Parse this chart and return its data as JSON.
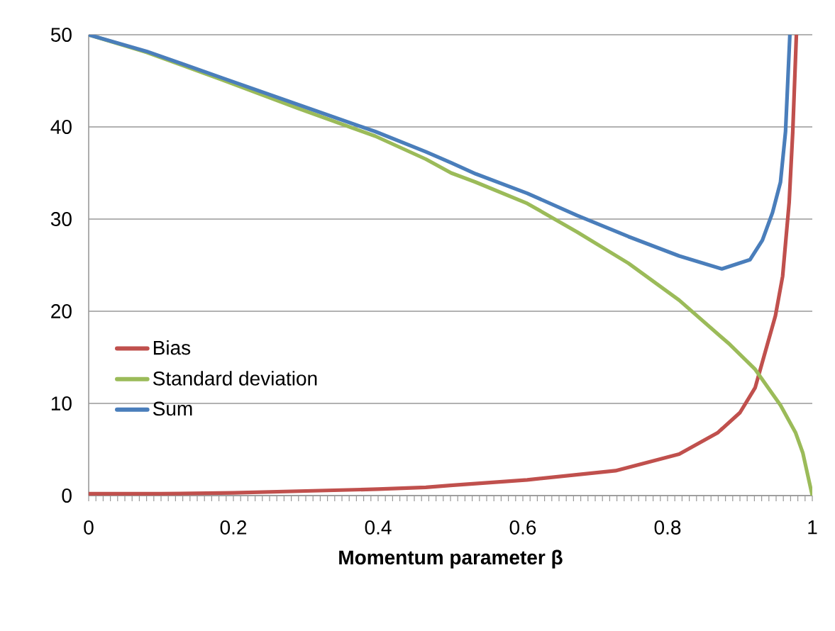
{
  "chart_data": {
    "type": "line",
    "xlabel": "Momentum parameter β",
    "xlim": [
      0,
      1
    ],
    "ylim": [
      0,
      50
    ],
    "xticks": [
      0,
      0.2,
      0.4,
      0.6,
      0.8,
      1
    ],
    "yticks": [
      0,
      10,
      20,
      30,
      40,
      50
    ],
    "grid": "y",
    "legend": "bottom left",
    "marker": "none",
    "line_style": "solid",
    "series": [
      {
        "name": "Bias",
        "color": "#c0504d",
        "x": [
          0,
          0.1,
          0.2,
          0.3,
          0.4,
          0.466,
          0.5,
          0.606,
          0.728,
          0.816,
          0.869,
          0.9,
          0.921,
          0.935,
          0.949,
          0.959,
          0.968,
          0.973,
          0.978
        ],
        "values": [
          0.2,
          0.2,
          0.3,
          0.5,
          0.7,
          0.9,
          1.1,
          1.7,
          2.7,
          4.5,
          6.8,
          9.0,
          11.7,
          15.6,
          19.5,
          23.8,
          31.8,
          39.5,
          50
        ]
      },
      {
        "name": "Standard deviation",
        "color": "#9bbb59",
        "x": [
          0,
          0.08,
          0.185,
          0.29,
          0.396,
          0.466,
          0.501,
          0.535,
          0.606,
          0.675,
          0.746,
          0.816,
          0.886,
          0.921,
          0.956,
          0.977,
          0.987,
          1.0
        ],
        "values": [
          50,
          48.1,
          45.1,
          42.0,
          39.0,
          36.5,
          35.0,
          34.0,
          31.7,
          28.6,
          25.2,
          21.2,
          16.4,
          13.7,
          9.8,
          6.8,
          4.6,
          0
        ]
      },
      {
        "name": "Sum",
        "color": "#4a7ebb",
        "x": [
          0,
          0.08,
          0.185,
          0.29,
          0.396,
          0.466,
          0.501,
          0.535,
          0.606,
          0.675,
          0.746,
          0.816,
          0.875,
          0.914,
          0.931,
          0.945,
          0.956,
          0.963,
          0.969
        ],
        "values": [
          50,
          48.2,
          45.3,
          42.4,
          39.5,
          37.3,
          36.1,
          34.9,
          32.8,
          30.4,
          28.1,
          26.0,
          24.6,
          25.6,
          27.7,
          30.7,
          34.0,
          39.5,
          50
        ]
      }
    ]
  }
}
